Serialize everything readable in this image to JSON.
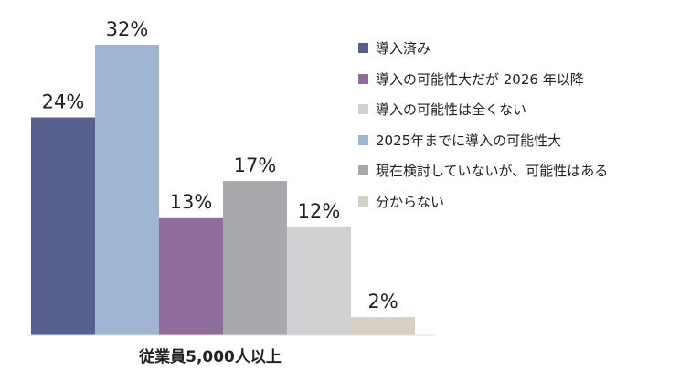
{
  "chart_data": {
    "type": "bar",
    "categories": [
      "従業員5,000人以上"
    ],
    "series": [
      {
        "name": "導入済み",
        "values": [
          24
        ],
        "color": "#565f8e"
      },
      {
        "name": "2025年までに導入の可能性大",
        "values": [
          32
        ],
        "color": "#9fb6d2"
      },
      {
        "name": "導入の可能性大だが 2026 年以降",
        "values": [
          13
        ],
        "color": "#8e6d9c"
      },
      {
        "name": "現在検討していないが、可能性はある",
        "values": [
          17
        ],
        "color": "#a7a9ad"
      },
      {
        "name": "導入の可能性は全くない",
        "values": [
          12
        ],
        "color": "#d0d1d3"
      },
      {
        "name": "分からない",
        "values": [
          2
        ],
        "color": "#d8d0c4"
      }
    ],
    "value_suffix": "%",
    "legend": {
      "position": "right",
      "order": [
        "導入済み",
        "導入の可能性大だが 2026 年以降",
        "導入の可能性は全くない",
        "2025年までに導入の可能性大",
        "現在検討していないが、可能性はある",
        "分からない"
      ]
    },
    "ylim": [
      0,
      32
    ],
    "grid": false
  }
}
